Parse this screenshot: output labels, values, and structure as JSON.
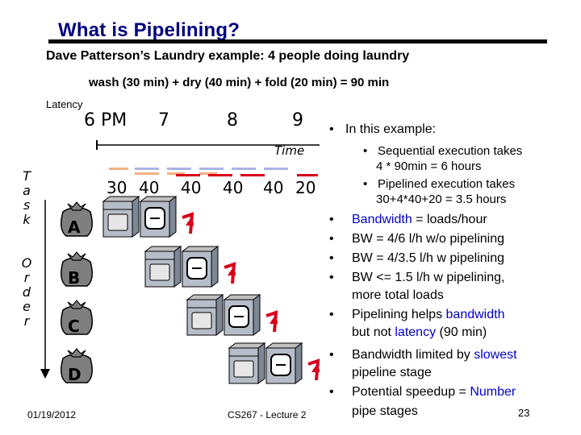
{
  "slide": {
    "title": "What is Pipelining?",
    "subtitle": "Dave Patterson’s Laundry example: 4 people doing laundry",
    "formula": "wash (30 min) + dry (40 min) + fold (20 min) = 90 min",
    "latency_label": "Latency",
    "time_ticks": [
      "6 PM",
      "7",
      "8",
      "9"
    ],
    "time_label": "Time",
    "durations": [
      "30",
      "40",
      "40",
      "40",
      "40",
      "20"
    ],
    "task_order_vertical": [
      "T",
      "a",
      "s",
      "k"
    ],
    "order_vertical": [
      "O",
      "r",
      "d",
      "e",
      "r"
    ],
    "bags": [
      "A",
      "B",
      "C",
      "D"
    ],
    "bullets": {
      "b1": "In this example:",
      "s1a": "Sequential execution takes",
      "s1b": "4 * 90min = 6 hours",
      "s2a": "Pipelined execution takes",
      "s2b": "30+4*40+20 = 3.5 hours",
      "b2_pre": "Bandwidth",
      "b2_post": " = loads/hour",
      "b3": "BW = 4/6 l/h w/o pipelining",
      "b4": "BW = 4/3.5  l/h w pipelining",
      "b5a": "BW <= 1.5 l/h w pipelining,",
      "b5b": "more total loads",
      "b6a_pre": "Pipelining helps ",
      "b6a_hl": "bandwidth",
      "b6b_pre": "but not ",
      "b6b_hl": "latency",
      "b6b_post": " (90 min)",
      "b7a_pre": "Bandwidth limited by ",
      "b7a_hl": "slowest",
      "b7b": "pipeline stage",
      "b8a_pre": "Potential speedup = ",
      "b8a_hl": "Number",
      "b8b": "pipe stages"
    },
    "footer_date": "01/19/2012",
    "footer_course": "CS267 - Lecture 2",
    "page_number": "23",
    "colors": {
      "title": "#000080",
      "wash": "#f4b183",
      "dry": "#aab4e6",
      "fold": "#d9001b",
      "highlight": "#0000cc"
    }
  }
}
